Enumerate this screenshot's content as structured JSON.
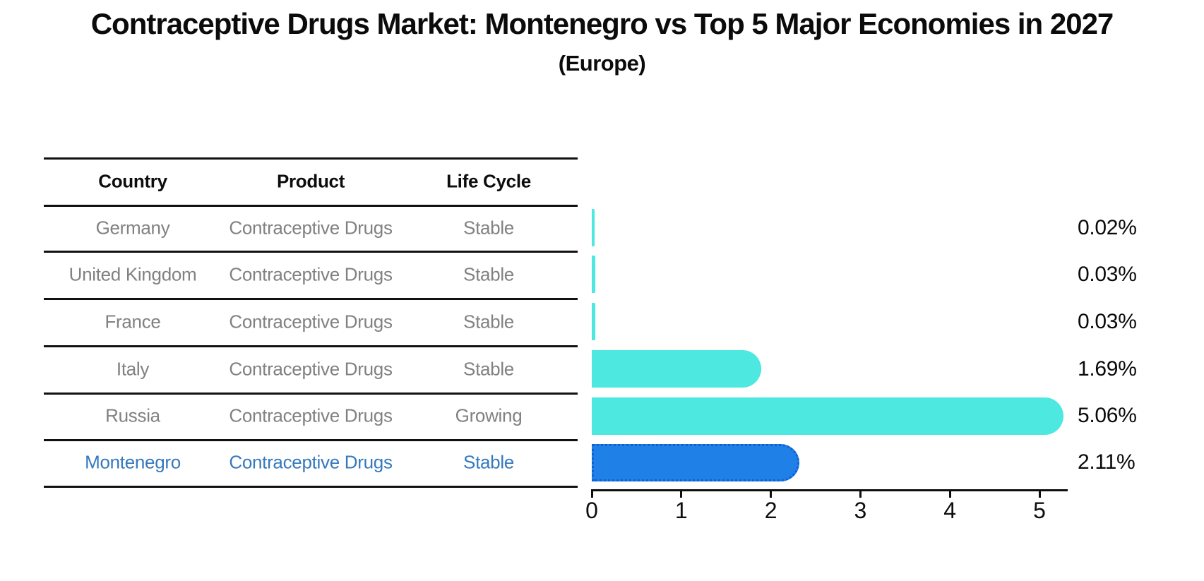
{
  "title": "Contraceptive Drugs Market: Montenegro vs Top 5 Major Economies in 2027",
  "subtitle": "(Europe)",
  "table": {
    "headers": [
      "Country",
      "Product",
      "Life Cycle"
    ],
    "rows": [
      {
        "country": "Germany",
        "product": "Contraceptive Drugs",
        "life_cycle": "Stable",
        "highlight": false
      },
      {
        "country": "United Kingdom",
        "product": "Contraceptive Drugs",
        "life_cycle": "Stable",
        "highlight": false
      },
      {
        "country": "France",
        "product": "Contraceptive Drugs",
        "life_cycle": "Stable",
        "highlight": false
      },
      {
        "country": "Italy",
        "product": "Contraceptive Drugs",
        "life_cycle": "Stable",
        "highlight": false
      },
      {
        "country": "Russia",
        "product": "Contraceptive Drugs",
        "life_cycle": "Growing",
        "highlight": false
      },
      {
        "country": "Montenegro",
        "product": "Contraceptive Drugs",
        "life_cycle": "Stable",
        "highlight": true
      }
    ]
  },
  "chart_data": {
    "type": "bar",
    "orientation": "horizontal",
    "title": "Contraceptive Drugs Market: Montenegro vs Top 5 Major Economies in 2027 (Europe)",
    "categories": [
      "Germany",
      "United Kingdom",
      "France",
      "Italy",
      "Russia",
      "Montenegro"
    ],
    "values": [
      0.02,
      0.03,
      0.03,
      1.69,
      5.06,
      2.11
    ],
    "value_labels": [
      "0.02%",
      "0.03%",
      "0.03%",
      "1.69%",
      "5.06%",
      "2.11%"
    ],
    "x_ticks": [
      0,
      1,
      2,
      3,
      4,
      5
    ],
    "x_tick_labels": [
      "0",
      "1",
      "2",
      "3",
      "4",
      "5"
    ],
    "xlim": [
      0,
      5.3
    ],
    "grid": false,
    "legend": false,
    "highlight_index": 5
  },
  "colors": {
    "bar": "#4DE8E0",
    "highlight_bar": "#1F80E8",
    "highlight_border": "#0F5FD7",
    "highlight_text": "#3579BE",
    "row_text": "#818181",
    "header_text": "#0D0D0D",
    "value_text": "#0A0A0A",
    "line": "#111111"
  }
}
